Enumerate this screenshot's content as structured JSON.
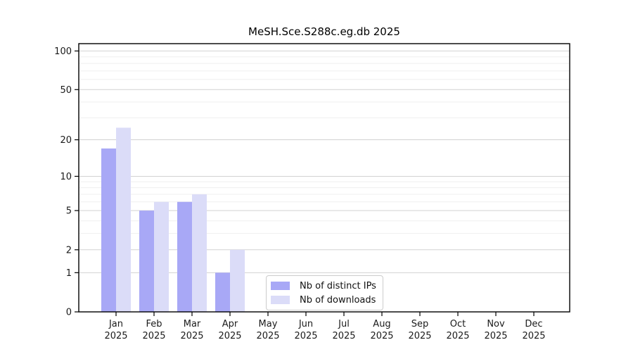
{
  "chart_data": {
    "type": "bar",
    "title": "MeSH.Sce.S288c.eg.db 2025",
    "categories": [
      {
        "month": "Jan",
        "year": "2025"
      },
      {
        "month": "Feb",
        "year": "2025"
      },
      {
        "month": "Mar",
        "year": "2025"
      },
      {
        "month": "Apr",
        "year": "2025"
      },
      {
        "month": "May",
        "year": "2025"
      },
      {
        "month": "Jun",
        "year": "2025"
      },
      {
        "month": "Jul",
        "year": "2025"
      },
      {
        "month": "Aug",
        "year": "2025"
      },
      {
        "month": "Sep",
        "year": "2025"
      },
      {
        "month": "Oct",
        "year": "2025"
      },
      {
        "month": "Nov",
        "year": "2025"
      },
      {
        "month": "Dec",
        "year": "2025"
      }
    ],
    "series": [
      {
        "name": "Nb of distinct IPs",
        "color": "#a8a8f6",
        "values": [
          17,
          5,
          6,
          1,
          0,
          0,
          0,
          0,
          0,
          0,
          0,
          0
        ]
      },
      {
        "name": "Nb of downloads",
        "color": "#dbdcf8",
        "values": [
          25,
          6,
          7,
          2,
          0,
          0,
          0,
          0,
          0,
          0,
          0,
          0
        ]
      }
    ],
    "yscale": "log1p",
    "ylim": [
      0,
      114
    ],
    "yticks_major": [
      0,
      1,
      2,
      5,
      10,
      20,
      50,
      100
    ],
    "yticks_minor": [
      3,
      4,
      6,
      7,
      8,
      9,
      30,
      40,
      60,
      70,
      80,
      90
    ],
    "grid": "horizontal",
    "legend_position": "inside-bottom-center",
    "colors": {
      "grid_major": "#d2d2d2",
      "grid_minor": "#efefef",
      "axis": "#000000",
      "text": "#1a1a1a"
    }
  }
}
